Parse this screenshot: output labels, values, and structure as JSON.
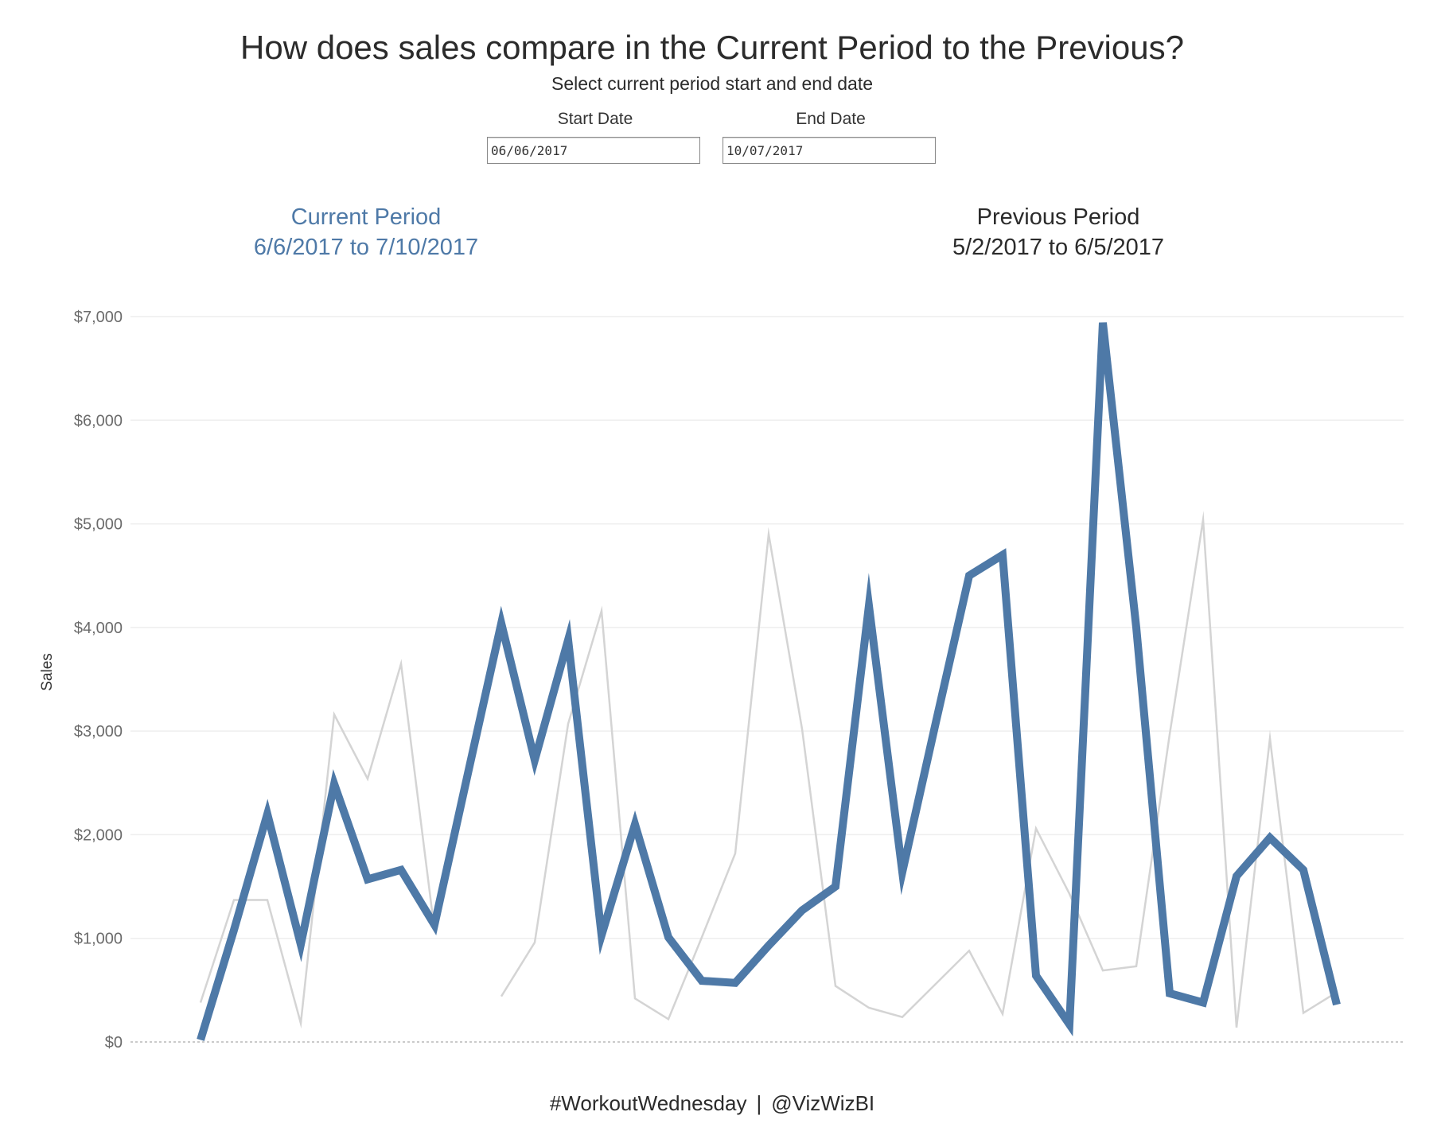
{
  "header": {
    "title": "How does sales compare in the Current Period to the Previous?",
    "subtitle": "Select current period start and end date"
  },
  "parameters": {
    "start": {
      "label": "Start Date",
      "value": "06/06/2017"
    },
    "end": {
      "label": "End Date",
      "value": "10/07/2017"
    }
  },
  "periods": {
    "current": {
      "label": "Current Period",
      "range": "6/6/2017 to 7/10/2017"
    },
    "previous": {
      "label": "Previous Period",
      "range": "5/2/2017 to 6/5/2017"
    }
  },
  "colors": {
    "current": "#4e79a7",
    "previous": "#d4d4d4",
    "gridline": "#eeeeee",
    "zeroline": "#b8b8b8"
  },
  "chart_data": {
    "type": "line",
    "title": "",
    "xlabel": "",
    "ylabel": "Sales",
    "ylim": [
      0,
      7000
    ],
    "yticks": [
      {
        "value": 0,
        "label": "$0"
      },
      {
        "value": 1000,
        "label": "$1,000"
      },
      {
        "value": 2000,
        "label": "$2,000"
      },
      {
        "value": 3000,
        "label": "$3,000"
      },
      {
        "value": 4000,
        "label": "$4,000"
      },
      {
        "value": 5000,
        "label": "$5,000"
      },
      {
        "value": 6000,
        "label": "$6,000"
      },
      {
        "value": 7000,
        "label": "$7,000"
      }
    ],
    "grid": true,
    "series": [
      {
        "name": "Previous Period",
        "values": [
          380,
          1370,
          1370,
          180,
          3160,
          2540,
          3650,
          1080,
          null,
          440,
          960,
          3070,
          4160,
          420,
          220,
          1010,
          1820,
          4900,
          3020,
          540,
          330,
          240,
          560,
          880,
          270,
          2060,
          1430,
          690,
          730,
          2970,
          5040,
          140,
          2930,
          280,
          480
        ]
      },
      {
        "name": "Current Period",
        "values": [
          20,
          1080,
          2200,
          940,
          2490,
          1570,
          1660,
          1130,
          2590,
          4040,
          2720,
          3880,
          1030,
          2100,
          1010,
          590,
          570,
          930,
          1270,
          1500,
          4210,
          1640,
          3080,
          4500,
          4700,
          640,
          170,
          6940,
          4000,
          470,
          380,
          1600,
          1970,
          1660,
          360
        ]
      }
    ]
  },
  "footer": {
    "hashtag": "#WorkoutWednesday",
    "separator": "|",
    "handle": "@VizWizBI"
  }
}
